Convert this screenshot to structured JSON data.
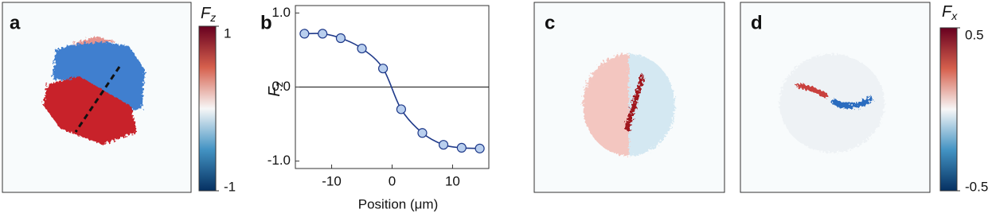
{
  "panels": {
    "a": {
      "label": "a",
      "colorbar": {
        "symbol": "F",
        "subscript": "z",
        "clim": [
          -1,
          1
        ],
        "ticks": [
          1,
          -1
        ]
      }
    },
    "b": {
      "label": "b"
    },
    "c": {
      "label": "c"
    },
    "d": {
      "label": "d",
      "colorbar": {
        "symbol": "F",
        "subscript": "x",
        "clim": [
          -0.5,
          0.5
        ],
        "ticks": [
          0.5,
          -0.5
        ]
      }
    }
  },
  "chart_data": {
    "type": "scatter",
    "xlabel": "Position (μm)",
    "ylabel_symbol": "F",
    "ylabel_subscript": "z",
    "x": [
      -14.5,
      -11.5,
      -8.5,
      -5,
      -1.5,
      1.5,
      5,
      8.5,
      11.5,
      14.5
    ],
    "values": [
      0.72,
      0.72,
      0.66,
      0.52,
      0.25,
      -0.3,
      -0.62,
      -0.78,
      -0.82,
      -0.83
    ],
    "color": "#b9cfee",
    "line_color": "#1f3a8a",
    "xlim": [
      -16,
      16
    ],
    "ylim": [
      -1.1,
      1.1
    ],
    "xticks": [
      -10,
      0,
      10
    ],
    "yticks": [
      {
        "value": 1,
        "label": "1.0"
      },
      {
        "value": 0,
        "label": "0.0"
      },
      {
        "value": -1,
        "label": "-1.0"
      }
    ],
    "zero_line": true,
    "smooth_line": true
  }
}
